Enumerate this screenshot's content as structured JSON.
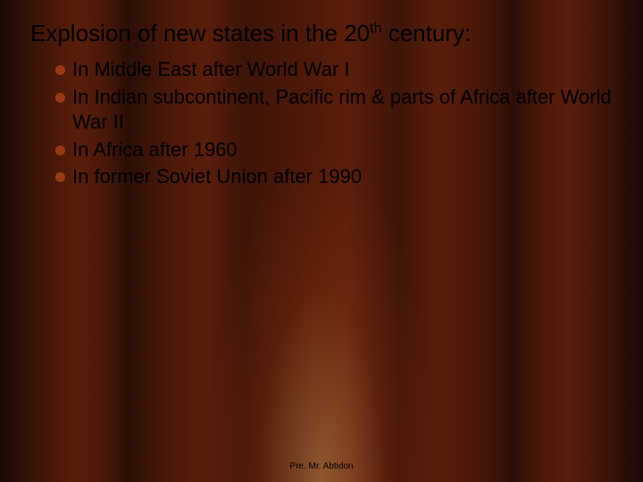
{
  "background": {
    "type": "curtain-gradient",
    "colors": [
      "#1a0a05",
      "#3d1408",
      "#5a1e0a",
      "#4a1808",
      "#2a0e06"
    ],
    "spotlight_color": "rgba(255,200,120,0.35)"
  },
  "title": {
    "prefix": "Explosion of new states in the 20",
    "superscript": "th",
    "suffix": " century:",
    "color": "#000000",
    "fontsize": 26
  },
  "bullets": {
    "dot_color": "#9a3a14",
    "text_color": "#000000",
    "fontsize": 22,
    "items": [
      {
        "text": "In Middle East after World War I"
      },
      {
        "text": "In Indian subcontinent, Pacific rim & parts of Africa after World War II"
      },
      {
        "text": "In Africa after 1960"
      },
      {
        "text": "In former Soviet Union after 1990"
      }
    ]
  },
  "footer": {
    "text": "Pre. Mr. Abtidon",
    "fontsize": 10,
    "color": "#000000"
  }
}
